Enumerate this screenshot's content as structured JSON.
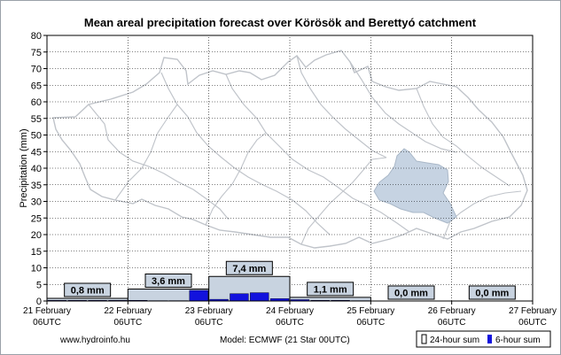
{
  "chart_data": {
    "type": "bar",
    "title": "Mean areal precipitation forecast over Körösök and Berettyó catchment",
    "ylabel": "Precipitation (mm)",
    "xlabel": "",
    "ylim": [
      0,
      80
    ],
    "y_ticks": [
      0,
      5,
      10,
      15,
      20,
      25,
      30,
      35,
      40,
      45,
      50,
      55,
      60,
      65,
      70,
      75,
      80
    ],
    "x_ticks": [
      {
        "date": "21 February",
        "time": "06UTC"
      },
      {
        "date": "22 February",
        "time": "06UTC"
      },
      {
        "date": "23 February",
        "time": "06UTC"
      },
      {
        "date": "24 February",
        "time": "06UTC"
      },
      {
        "date": "25 February",
        "time": "06UTC"
      },
      {
        "date": "26 February",
        "time": "06UTC"
      },
      {
        "date": "27 February",
        "time": "06UTC"
      }
    ],
    "grid": true,
    "legend_position": "bottom-right",
    "series": [
      {
        "name": "24-hour sum",
        "color": "#c8d3e0",
        "start_days": [
          0,
          1,
          2,
          3,
          4,
          5
        ],
        "values": [
          0.8,
          3.6,
          7.4,
          1.1,
          0.0,
          0.0
        ],
        "labels": [
          "0,8 mm",
          "3,6 mm",
          "7,4 mm",
          "1,1 mm",
          "0,0 mm",
          "0,0 mm"
        ]
      },
      {
        "name": "6-hour sum",
        "color": "#1212dd",
        "start_days": [
          0,
          0.25,
          0.5,
          0.75,
          1,
          1.25,
          1.5,
          1.75,
          2,
          2.25,
          2.5,
          2.75,
          3,
          3.25,
          3.5,
          3.75,
          4,
          4.25,
          4.5,
          4.75,
          5,
          5.25,
          5.5,
          5.75
        ],
        "values": [
          0.2,
          0.2,
          0.2,
          0.2,
          0.2,
          0.1,
          0.1,
          3.2,
          0.5,
          2.2,
          2.5,
          0.7,
          0.4,
          0.2,
          0.2,
          0.1,
          0.0,
          0.0,
          0.0,
          0.0,
          0.0,
          0.0,
          0.0,
          0.0
        ]
      }
    ]
  },
  "footer": {
    "source": "www.hydroinfo.hu",
    "model": "Model:  ECMWF (21  Star 00UTC)"
  },
  "legend": {
    "item_24h": "24-hour sum",
    "item_6h": "6-hour sum"
  }
}
